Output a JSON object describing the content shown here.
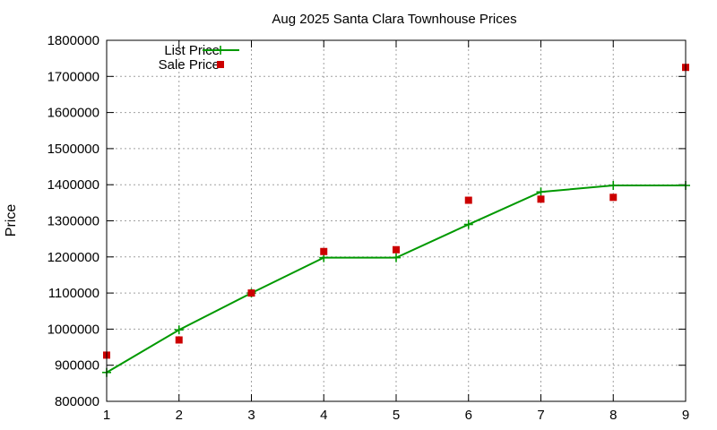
{
  "chart_data": {
    "type": "line",
    "title": "Aug 2025 Santa Clara Townhouse Prices",
    "xlabel": "",
    "ylabel": "Price",
    "xlim": [
      1,
      9
    ],
    "ylim": [
      800000,
      1800000
    ],
    "x_ticks": [
      1,
      2,
      3,
      4,
      5,
      6,
      7,
      8,
      9
    ],
    "y_ticks": [
      800000,
      900000,
      1000000,
      1100000,
      1200000,
      1300000,
      1400000,
      1500000,
      1600000,
      1700000,
      1800000
    ],
    "grid": true,
    "legend_position": "top-left",
    "series": [
      {
        "name": "List Price",
        "style": "linespoints",
        "marker": "plus",
        "color": "#009900",
        "x": [
          1,
          2,
          3,
          4,
          5,
          6,
          7,
          8,
          9
        ],
        "y": [
          880000,
          998000,
          1100000,
          1198000,
          1198000,
          1290000,
          1380000,
          1398000,
          1398000
        ]
      },
      {
        "name": "Sale Price",
        "style": "points",
        "marker": "square",
        "color": "#cc0000",
        "x": [
          1,
          2,
          3,
          4,
          5,
          6,
          7,
          8,
          9
        ],
        "y": [
          928000,
          970000,
          1100000,
          1215000,
          1220000,
          1357000,
          1360000,
          1365000,
          1725000
        ]
      }
    ]
  }
}
